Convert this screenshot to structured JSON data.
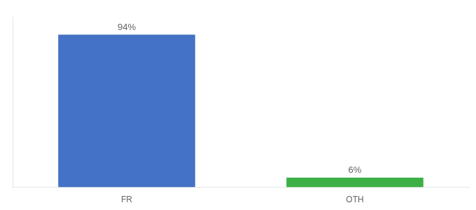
{
  "chart_data": {
    "type": "bar",
    "categories": [
      "FR",
      "OTH"
    ],
    "values": [
      94,
      6
    ],
    "value_labels": [
      "94%",
      "6%"
    ],
    "colors": [
      "#4472c4",
      "#3cb044"
    ],
    "ylim": [
      0,
      105
    ],
    "grid": false,
    "data_labels": true,
    "tick_labels": "x"
  }
}
